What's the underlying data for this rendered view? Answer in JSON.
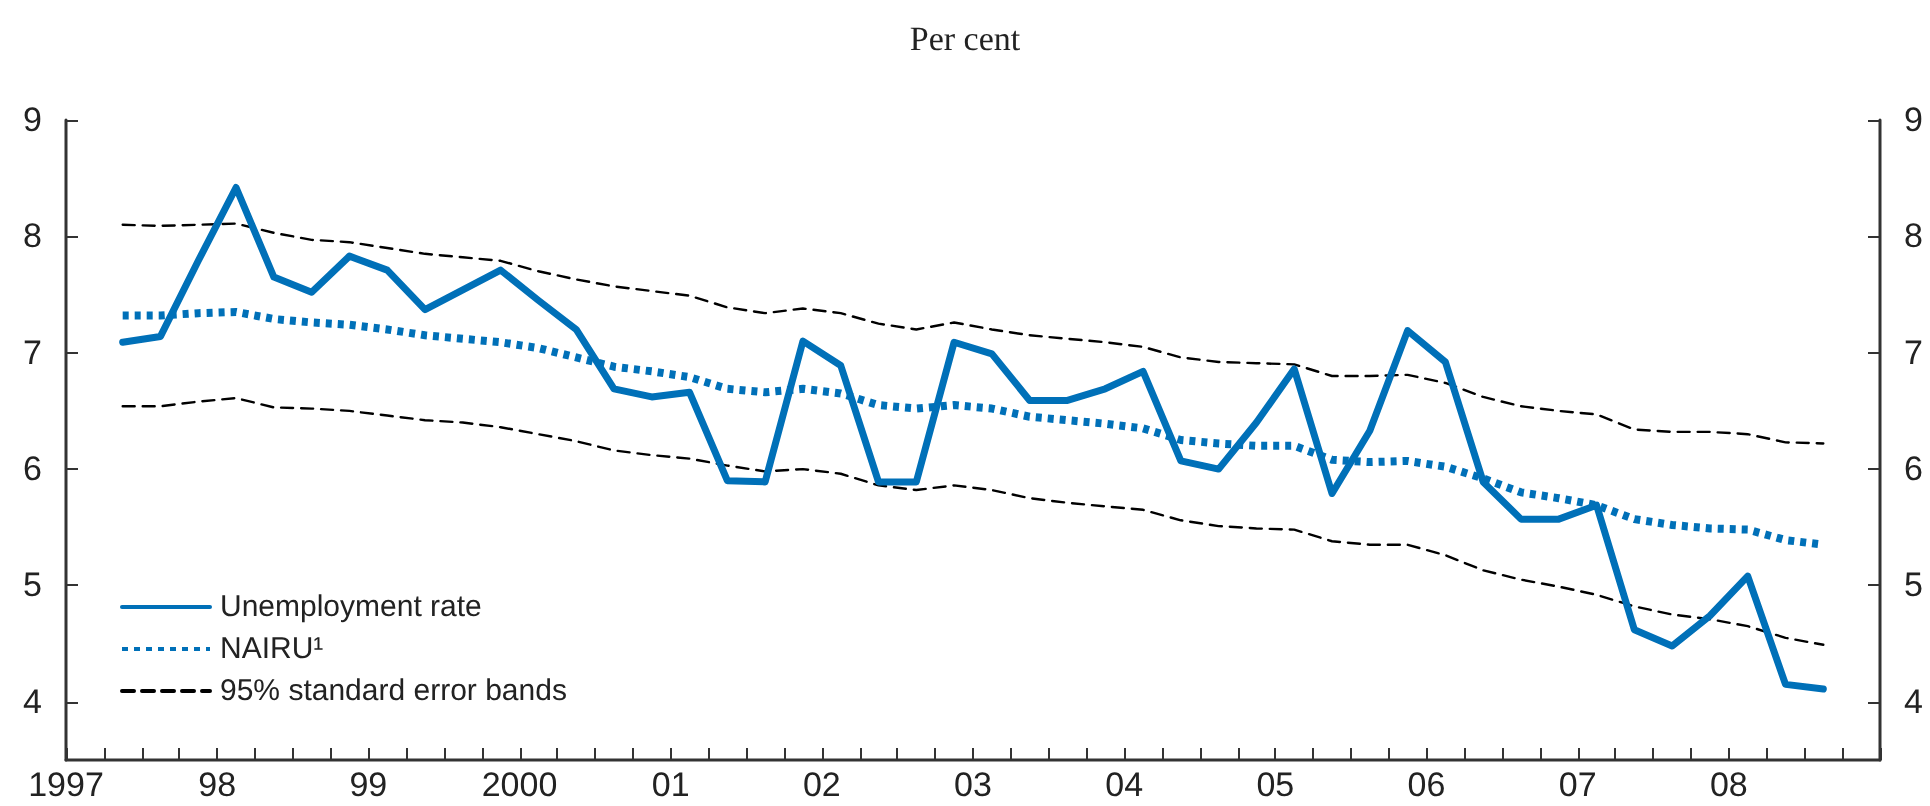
{
  "chart_data": {
    "type": "line",
    "title": "Per cent",
    "x": [
      1997.375,
      1997.625,
      1997.875,
      1998.125,
      1998.375,
      1998.625,
      1998.875,
      1999.125,
      1999.375,
      1999.625,
      1999.875,
      2000.125,
      2000.375,
      2000.625,
      2000.875,
      2001.125,
      2001.375,
      2001.625,
      2001.875,
      2002.125,
      2002.375,
      2002.625,
      2002.875,
      2003.125,
      2003.375,
      2003.625,
      2003.875,
      2004.125,
      2004.375,
      2004.625,
      2004.875,
      2005.125,
      2005.375,
      2005.625,
      2005.875,
      2006.125,
      2006.375,
      2006.625,
      2006.875,
      2007.125,
      2007.375,
      2007.625,
      2007.875,
      2008.125,
      2008.375,
      2008.625
    ],
    "series": [
      {
        "name": "Unemployment rate",
        "color": "#0070b8",
        "line_style": "solid",
        "values": [
          7.09,
          7.14,
          7.79,
          8.42,
          7.65,
          7.52,
          7.83,
          7.71,
          7.37,
          7.54,
          7.71,
          7.45,
          7.2,
          6.69,
          6.62,
          6.66,
          5.9,
          5.89,
          7.1,
          6.89,
          5.89,
          5.89,
          7.09,
          6.99,
          6.59,
          6.59,
          6.69,
          6.84,
          6.07,
          6.0,
          6.4,
          6.86,
          5.79,
          6.33,
          7.19,
          6.92,
          5.89,
          5.57,
          5.57,
          5.69,
          4.62,
          4.48,
          4.74,
          5.08,
          4.15,
          4.11
        ]
      },
      {
        "name": "NAIRU¹",
        "color": "#0070b8",
        "line_style": "dotted",
        "values": [
          7.32,
          7.32,
          7.34,
          7.35,
          7.29,
          7.26,
          7.24,
          7.2,
          7.15,
          7.12,
          7.09,
          7.04,
          6.96,
          6.88,
          6.84,
          6.79,
          6.69,
          6.66,
          6.69,
          6.65,
          6.55,
          6.52,
          6.55,
          6.52,
          6.45,
          6.42,
          6.39,
          6.35,
          6.25,
          6.22,
          6.2,
          6.2,
          6.08,
          6.06,
          6.07,
          6.02,
          5.92,
          5.8,
          5.75,
          5.69,
          5.57,
          5.52,
          5.49,
          5.48,
          5.39,
          5.35
        ]
      },
      {
        "name": "95% standard error bands",
        "color": "#000000",
        "line_style": "dashed",
        "values": [
          8.1,
          8.09,
          8.1,
          8.11,
          8.03,
          7.97,
          7.95,
          7.9,
          7.85,
          7.82,
          7.79,
          7.7,
          7.63,
          7.57,
          7.53,
          7.49,
          7.39,
          7.34,
          7.38,
          7.34,
          7.25,
          7.2,
          7.26,
          7.2,
          7.15,
          7.12,
          7.09,
          7.05,
          6.96,
          6.92,
          6.91,
          6.9,
          6.8,
          6.8,
          6.81,
          6.74,
          6.62,
          6.54,
          6.5,
          6.47,
          6.34,
          6.32,
          6.32,
          6.3,
          6.23,
          6.22
        ]
      },
      {
        "color": "#000000",
        "line_style": "dashed",
        "values": [
          6.54,
          6.54,
          6.58,
          6.61,
          6.53,
          6.52,
          6.5,
          6.46,
          6.42,
          6.4,
          6.36,
          6.3,
          6.24,
          6.16,
          6.12,
          6.09,
          6.03,
          5.98,
          6.0,
          5.96,
          5.86,
          5.82,
          5.86,
          5.82,
          5.75,
          5.71,
          5.68,
          5.65,
          5.56,
          5.51,
          5.49,
          5.48,
          5.38,
          5.35,
          5.35,
          5.26,
          5.13,
          5.05,
          4.99,
          4.92,
          4.82,
          4.75,
          4.71,
          4.65,
          4.55,
          4.49
        ]
      }
    ],
    "xlim": [
      1997,
      2009
    ],
    "xticks": [
      {
        "value": 1997,
        "label": "1997"
      },
      {
        "value": 1997.25,
        "label": null
      },
      {
        "value": 1997.5,
        "label": null
      },
      {
        "value": 1997.75,
        "label": null
      },
      {
        "value": 1998,
        "label": "98"
      },
      {
        "value": 1998.25,
        "label": null
      },
      {
        "value": 1998.5,
        "label": null
      },
      {
        "value": 1998.75,
        "label": null
      },
      {
        "value": 1999,
        "label": "99"
      },
      {
        "value": 1999.25,
        "label": null
      },
      {
        "value": 1999.5,
        "label": null
      },
      {
        "value": 1999.75,
        "label": null
      },
      {
        "value": 2000,
        "label": "2000"
      },
      {
        "value": 2000.25,
        "label": null
      },
      {
        "value": 2000.5,
        "label": null
      },
      {
        "value": 2000.75,
        "label": null
      },
      {
        "value": 2001,
        "label": "01"
      },
      {
        "value": 2001.25,
        "label": null
      },
      {
        "value": 2001.5,
        "label": null
      },
      {
        "value": 2001.75,
        "label": null
      },
      {
        "value": 2002,
        "label": "02"
      },
      {
        "value": 2002.25,
        "label": null
      },
      {
        "value": 2002.5,
        "label": null
      },
      {
        "value": 2002.75,
        "label": null
      },
      {
        "value": 2003,
        "label": "03"
      },
      {
        "value": 2003.25,
        "label": null
      },
      {
        "value": 2003.5,
        "label": null
      },
      {
        "value": 2003.75,
        "label": null
      },
      {
        "value": 2004,
        "label": "04"
      },
      {
        "value": 2004.25,
        "label": null
      },
      {
        "value": 2004.5,
        "label": null
      },
      {
        "value": 2004.75,
        "label": null
      },
      {
        "value": 2005,
        "label": "05"
      },
      {
        "value": 2005.25,
        "label": null
      },
      {
        "value": 2005.5,
        "label": null
      },
      {
        "value": 2005.75,
        "label": null
      },
      {
        "value": 2006,
        "label": "06"
      },
      {
        "value": 2006.25,
        "label": null
      },
      {
        "value": 2006.5,
        "label": null
      },
      {
        "value": 2006.75,
        "label": null
      },
      {
        "value": 2007,
        "label": "07"
      },
      {
        "value": 2007.25,
        "label": null
      },
      {
        "value": 2007.5,
        "label": null
      },
      {
        "value": 2007.75,
        "label": null
      },
      {
        "value": 2008,
        "label": "08"
      },
      {
        "value": 2008.25,
        "label": null
      },
      {
        "value": 2008.5,
        "label": null
      },
      {
        "value": 2008.75,
        "label": null
      },
      {
        "value": 2009,
        "label": null
      }
    ],
    "ylim": [
      3.5,
      9
    ],
    "yticks": [
      4,
      5,
      6,
      7,
      8,
      9
    ],
    "y2lim": [
      3.5,
      9
    ],
    "y2ticks": [
      4,
      5,
      6,
      7,
      8,
      9
    ],
    "marker": "none",
    "grid": false,
    "legend": "bottom left"
  }
}
